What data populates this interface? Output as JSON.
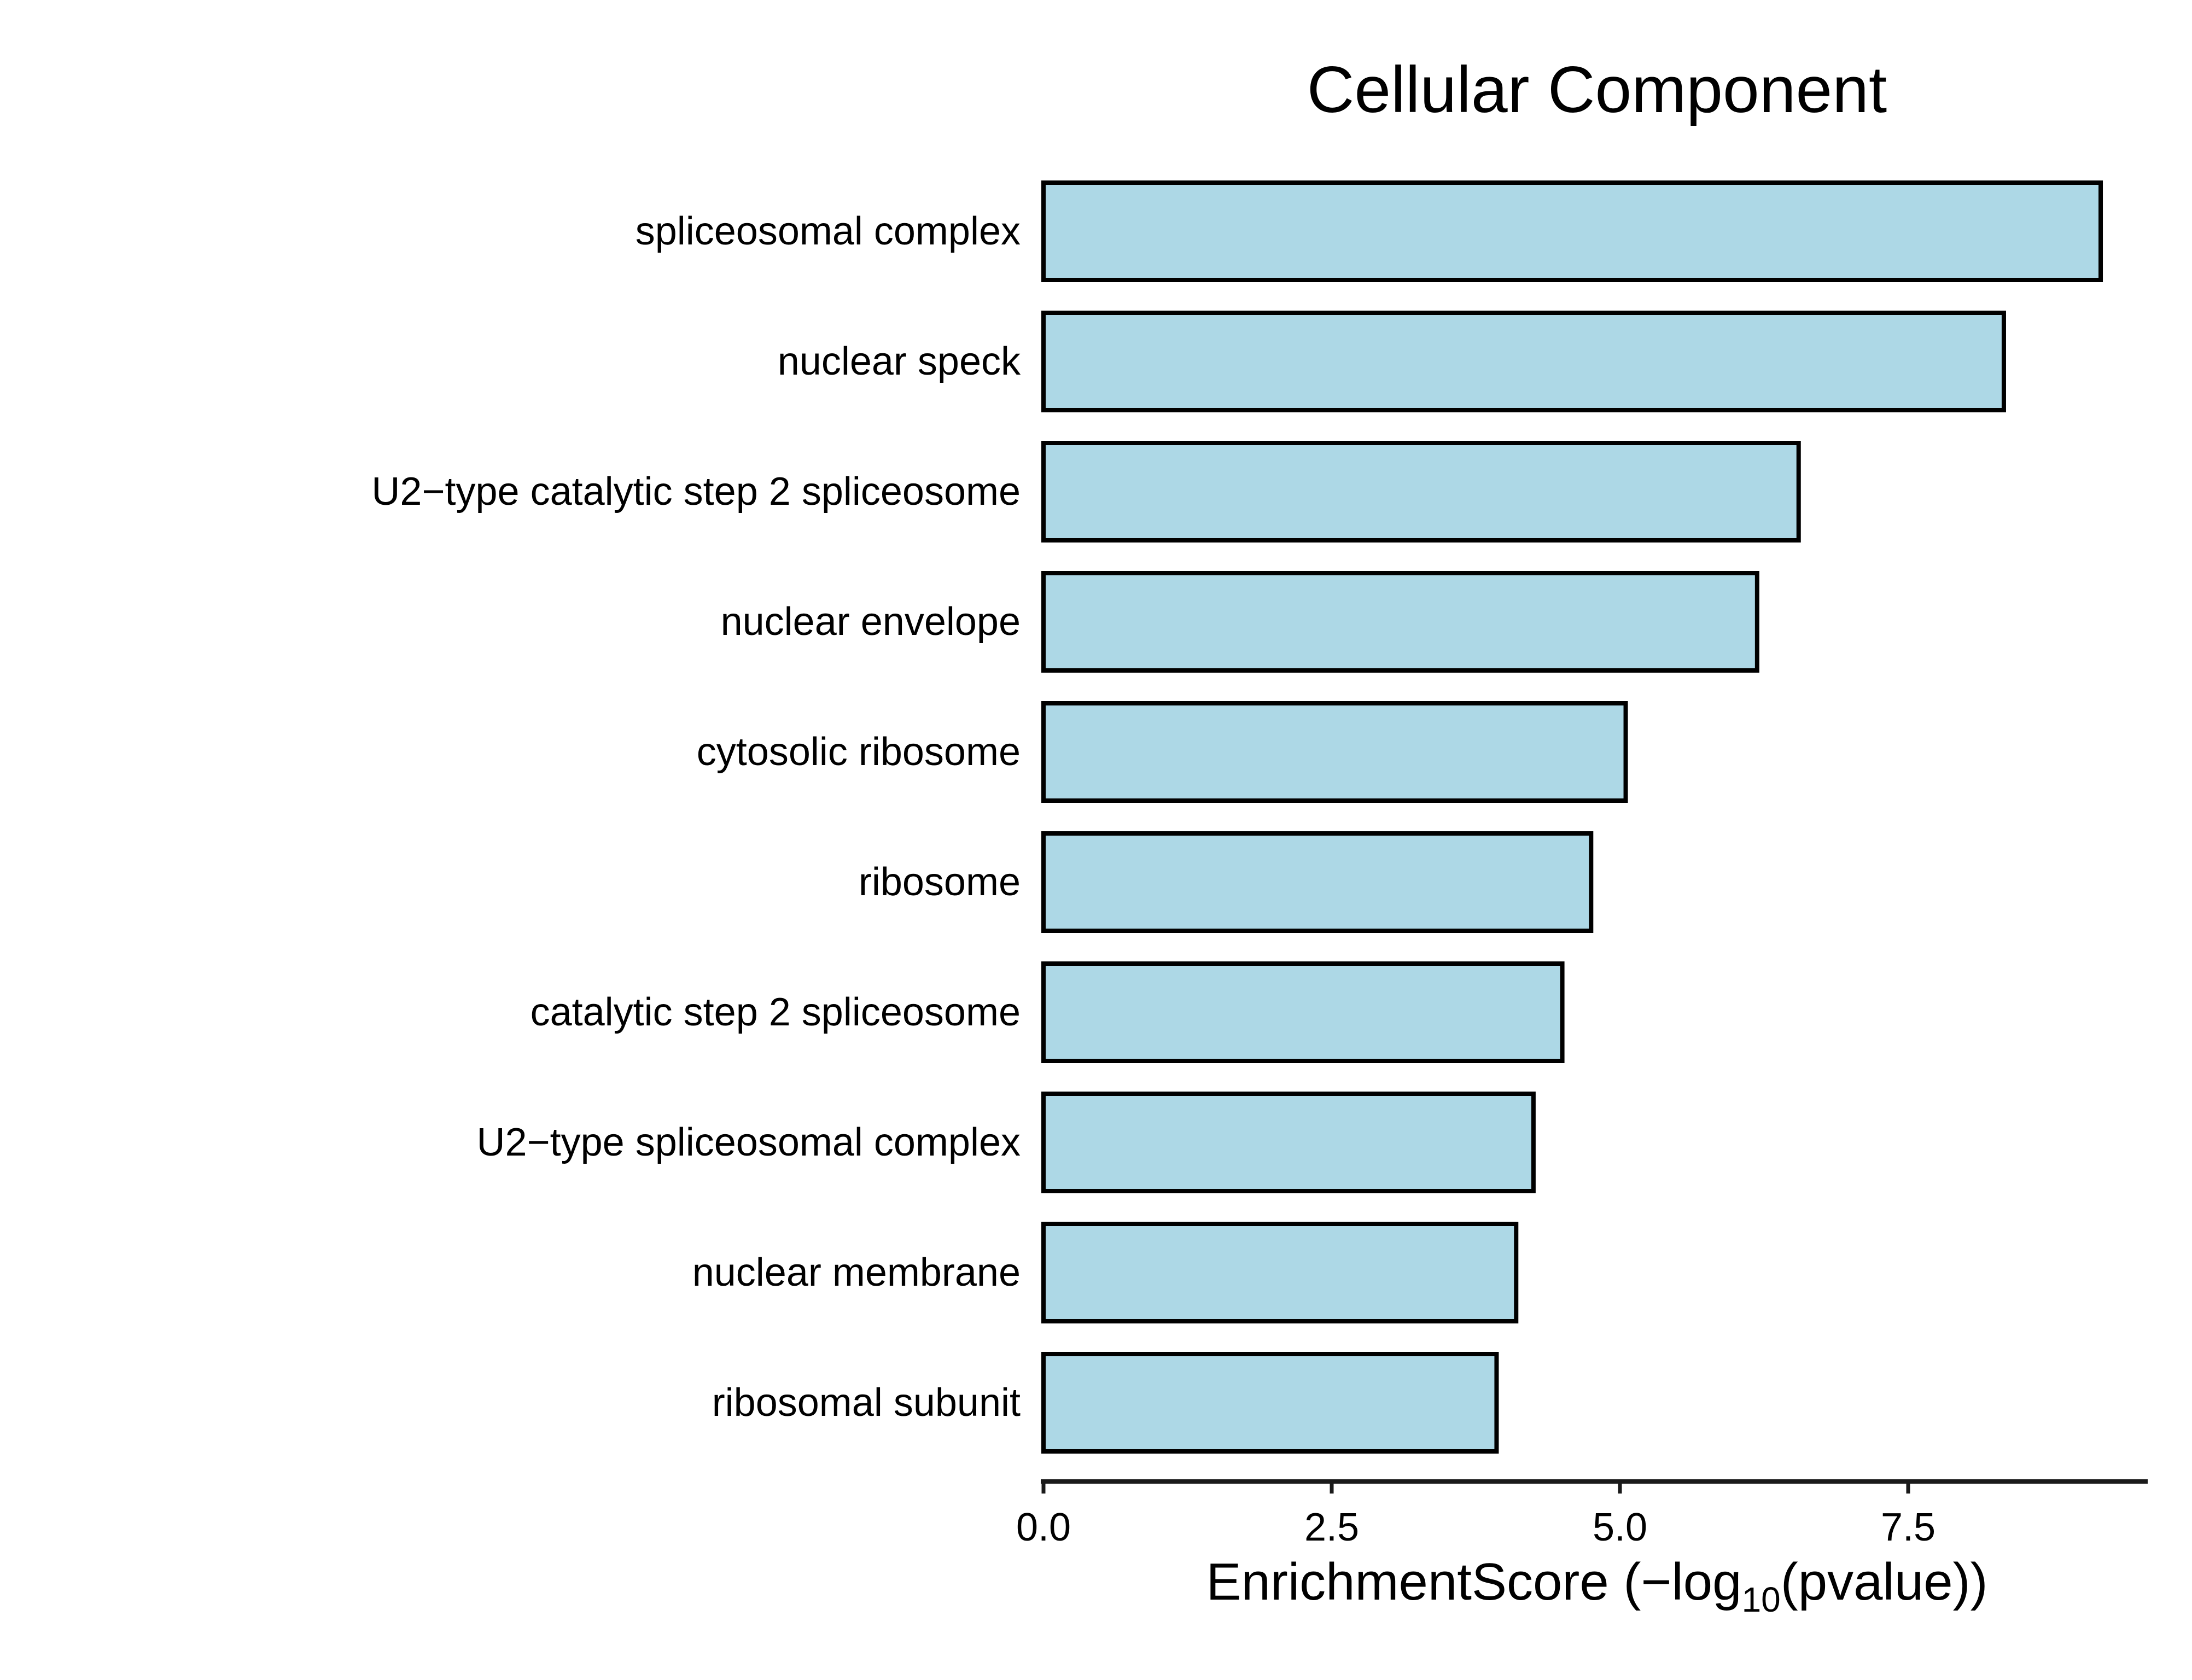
{
  "chart_data": {
    "type": "bar",
    "orientation": "horizontal",
    "title": "Cellular Component",
    "xlabel": {
      "prefix": "EnrichmentScore (−log",
      "subscript": "10",
      "suffix": "(pvalue))"
    },
    "ylabel": "",
    "categories": [
      "spliceosomal complex",
      "nuclear speck",
      "U2−type catalytic step 2 spliceosome",
      "nuclear envelope",
      "cytosolic ribosome",
      "ribosome",
      "catalytic step 2 spliceosome",
      "U2−type spliceosomal complex",
      "nuclear membrane",
      "ribosomal subunit"
    ],
    "values": [
      9.17,
      8.33,
      6.55,
      6.19,
      5.05,
      4.75,
      4.5,
      4.25,
      4.1,
      3.93
    ],
    "xlim": [
      0,
      9.6
    ],
    "xticks": [
      0.0,
      2.5,
      5.0,
      7.5
    ],
    "xtick_labels": [
      "0.0",
      "2.5",
      "5.0",
      "7.5"
    ],
    "grid": false,
    "legend": "none",
    "colors": {
      "bar_fill": "#add8e6",
      "bar_stroke": "#000000",
      "axis": "#1a1a1a",
      "text": "#000000",
      "background": "#ffffff"
    }
  }
}
